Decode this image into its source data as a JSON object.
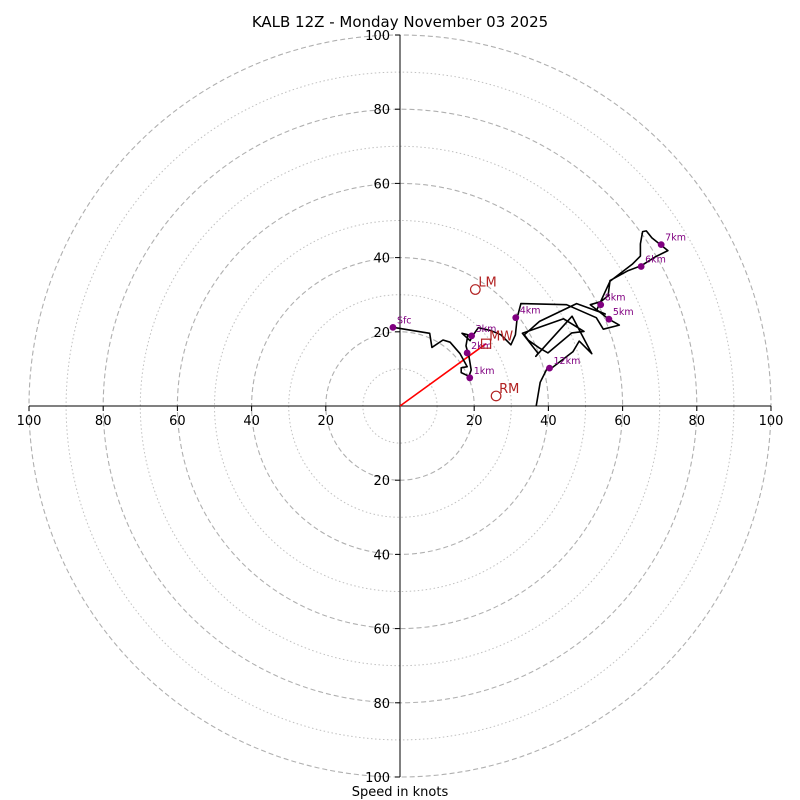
{
  "chart_data": {
    "type": "hodograph",
    "title": "KALB 12Z - Monday November 03 2025",
    "xlabel": "Speed in knots",
    "speed_max": 100,
    "dashed_rings": [
      20,
      40,
      60,
      80,
      100
    ],
    "dotted_rings": [
      10,
      30,
      50,
      70,
      90
    ],
    "x_ticks": [
      {
        "value": -100,
        "label": "100"
      },
      {
        "value": -80,
        "label": "80"
      },
      {
        "value": -60,
        "label": "60"
      },
      {
        "value": -40,
        "label": "40"
      },
      {
        "value": -20,
        "label": "20"
      },
      {
        "value": 20,
        "label": "20"
      },
      {
        "value": 40,
        "label": "40"
      },
      {
        "value": 60,
        "label": "60"
      },
      {
        "value": 80,
        "label": "80"
      },
      {
        "value": 100,
        "label": "100"
      }
    ],
    "y_ticks": [
      {
        "value": 100,
        "label": "100"
      },
      {
        "value": 80,
        "label": "80"
      },
      {
        "value": 60,
        "label": "60"
      },
      {
        "value": 40,
        "label": "40"
      },
      {
        "value": 20,
        "label": "20"
      },
      {
        "value": -20,
        "label": "20"
      },
      {
        "value": -40,
        "label": "40"
      },
      {
        "value": -60,
        "label": "60"
      },
      {
        "value": -80,
        "label": "80"
      },
      {
        "value": -100,
        "label": "100"
      }
    ],
    "wind_trace": [
      [
        -1.9,
        21.2
      ],
      [
        8,
        19.6
      ],
      [
        8.6,
        15.8
      ],
      [
        11.6,
        17.8
      ],
      [
        13.5,
        17.2
      ],
      [
        16.2,
        14.1
      ],
      [
        18.1,
        10.6
      ],
      [
        16.5,
        10.3
      ],
      [
        16.5,
        9
      ],
      [
        18.6,
        8
      ],
      [
        19.2,
        9.7
      ],
      [
        18.6,
        13.3
      ],
      [
        17.8,
        16.2
      ],
      [
        18.3,
        19.2
      ],
      [
        16.7,
        19.6
      ],
      [
        18.9,
        17.6
      ],
      [
        19.5,
        18.8
      ],
      [
        21.1,
        21.1
      ],
      [
        24.6,
        20.3
      ],
      [
        27.2,
        19.2
      ],
      [
        29.9,
        16.5
      ],
      [
        31.1,
        19.2
      ],
      [
        31.6,
        23.8
      ],
      [
        32.6,
        27.6
      ],
      [
        44.9,
        27.3
      ],
      [
        52.9,
        23.8
      ],
      [
        54.8,
        20.7
      ],
      [
        59.1,
        21.8
      ],
      [
        56.3,
        23.4
      ],
      [
        51.3,
        27.3
      ],
      [
        54.1,
        28.1
      ],
      [
        56.1,
        29.7
      ],
      [
        56.6,
        33.8
      ],
      [
        61.5,
        36.5
      ],
      [
        65,
        37.8
      ],
      [
        68.8,
        40.2
      ],
      [
        72.2,
        41.9
      ],
      [
        67.9,
        45.3
      ],
      [
        66.4,
        47.2
      ],
      [
        65.4,
        47
      ],
      [
        64.8,
        43.7
      ],
      [
        64.8,
        40.4
      ],
      [
        62.6,
        38.2
      ],
      [
        56.6,
        33.6
      ],
      [
        53,
        25.8
      ],
      [
        55.3,
        24.8
      ],
      [
        47.6,
        27.6
      ],
      [
        37.6,
        22.8
      ],
      [
        33.5,
        19.2
      ],
      [
        34.6,
        17.7
      ],
      [
        37.5,
        15.7
      ],
      [
        39.9,
        14.3
      ],
      [
        46.3,
        19.7
      ],
      [
        49.6,
        20.1
      ],
      [
        44.1,
        23.5
      ],
      [
        33,
        19.6
      ],
      [
        37.2,
        14.2
      ],
      [
        36.6,
        13.4
      ],
      [
        46.4,
        24.2
      ],
      [
        51.7,
        14.1
      ],
      [
        48.3,
        17.5
      ],
      [
        46.6,
        14.6
      ],
      [
        40.8,
        10.2
      ],
      [
        39.6,
        10
      ],
      [
        37.8,
        6.4
      ],
      [
        36.7,
        0
      ]
    ],
    "height_markers": [
      {
        "label": "Sfc",
        "u": -1.9,
        "v": 21.2
      },
      {
        "label": "1km",
        "u": 18.8,
        "v": 7.6
      },
      {
        "label": "2km",
        "u": 18.1,
        "v": 14.3
      },
      {
        "label": "3km",
        "u": 19.3,
        "v": 18.9
      },
      {
        "label": "4km",
        "u": 31.2,
        "v": 23.8
      },
      {
        "label": "5km",
        "u": 56.3,
        "v": 23.4
      },
      {
        "label": "6km",
        "u": 65,
        "v": 37.6
      },
      {
        "label": "7km",
        "u": 70.4,
        "v": 43.5
      },
      {
        "label": "8km",
        "u": 54.1,
        "v": 27.3
      },
      {
        "label": "12km",
        "u": 40.3,
        "v": 10.2
      }
    ],
    "storm_motion": [
      {
        "label": "LM",
        "u": 20.3,
        "v": 31.4,
        "marker": "circle"
      },
      {
        "label": "MW",
        "u": 23.2,
        "v": 16.8,
        "marker": "square"
      },
      {
        "label": "RM",
        "u": 25.9,
        "v": 2.7,
        "marker": "circle"
      }
    ],
    "shear_vector": {
      "from": [
        0,
        0
      ],
      "to": [
        23.2,
        16.8
      ]
    },
    "colors": {
      "trace": "#000000",
      "marker": "#800080",
      "storm": "#b22222",
      "shear": "#ff0000",
      "grid": "#b0b0b0",
      "axis": "#000000"
    }
  }
}
